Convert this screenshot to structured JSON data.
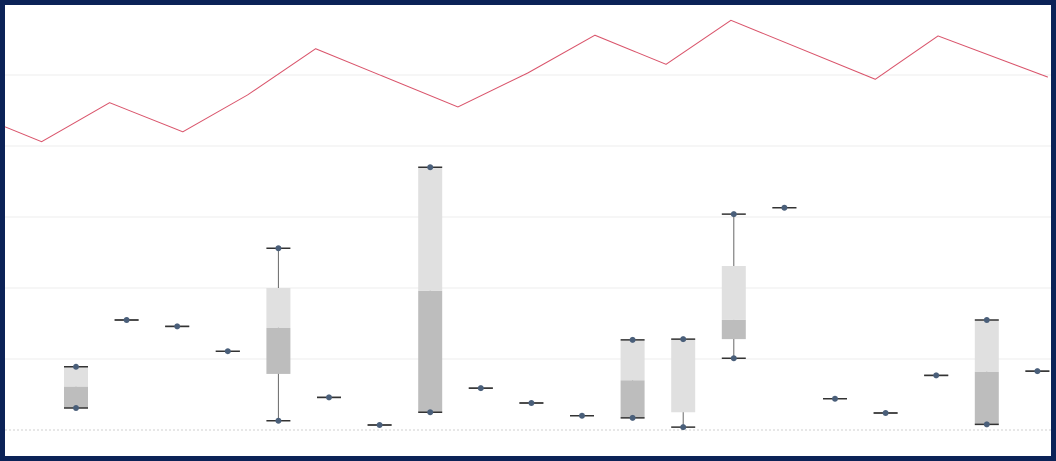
{
  "chart_data": [
    {
      "type": "line",
      "x": [
        0,
        3.5,
        10,
        17,
        23.2,
        29.7,
        43.3,
        50,
        56.4,
        63.2,
        69.4,
        83.2,
        89.2,
        99.7
      ],
      "series": [
        {
          "color": "#d9536a",
          "values": [
            4.27,
            4.06,
            4.61,
            4.2,
            4.72,
            5.37,
            4.55,
            5.03,
            5.56,
            5.15,
            5.77,
            4.94,
            5.55,
            4.97
          ]
        }
      ],
      "xlim": [
        0,
        100
      ],
      "ylim": [
        0,
        6
      ]
    },
    {
      "type": "box",
      "categories": [
        null,
        null,
        null,
        null,
        null,
        null,
        null,
        null,
        null,
        null,
        null,
        null,
        null,
        null,
        null,
        null,
        null,
        null,
        null,
        null
      ],
      "min": [
        0.31,
        1.55,
        1.46,
        1.11,
        0.13,
        0.46,
        0.07,
        0.25,
        0.59,
        0.38,
        0.2,
        0.17,
        0.04,
        1.01,
        3.13,
        0.44,
        0.24,
        0.77,
        0.08,
        0.83
      ],
      "q1": [
        0.31,
        1.55,
        1.46,
        1.11,
        0.79,
        0.46,
        0.07,
        0.25,
        0.59,
        0.38,
        0.2,
        0.17,
        0.25,
        1.28,
        3.13,
        0.44,
        0.24,
        0.77,
        0.08,
        0.83
      ],
      "median": [
        0.61,
        1.55,
        1.46,
        1.11,
        1.44,
        0.46,
        0.07,
        1.96,
        0.59,
        0.38,
        0.2,
        0.7,
        0.25,
        1.55,
        3.13,
        0.44,
        0.24,
        0.77,
        0.82,
        0.83
      ],
      "q3": [
        0.89,
        1.55,
        1.46,
        1.11,
        2.0,
        0.46,
        0.07,
        3.7,
        0.59,
        0.38,
        0.2,
        1.27,
        1.28,
        2.31,
        3.13,
        0.44,
        0.24,
        0.77,
        1.55,
        0.83
      ],
      "max": [
        0.89,
        1.55,
        1.46,
        1.11,
        2.56,
        0.46,
        0.07,
        3.7,
        0.59,
        0.38,
        0.2,
        1.27,
        1.28,
        3.04,
        3.13,
        0.44,
        0.24,
        0.77,
        1.55,
        0.83
      ],
      "colors": {
        "lower": "#bdbdbd",
        "upper": "#e0e0e0",
        "whisker": "#666666",
        "cap": "#333333",
        "point": "#4a5f7a"
      },
      "ylim": [
        0,
        6
      ],
      "yticks": [
        0,
        1,
        2,
        3,
        4,
        5
      ],
      "grid": true
    }
  ]
}
